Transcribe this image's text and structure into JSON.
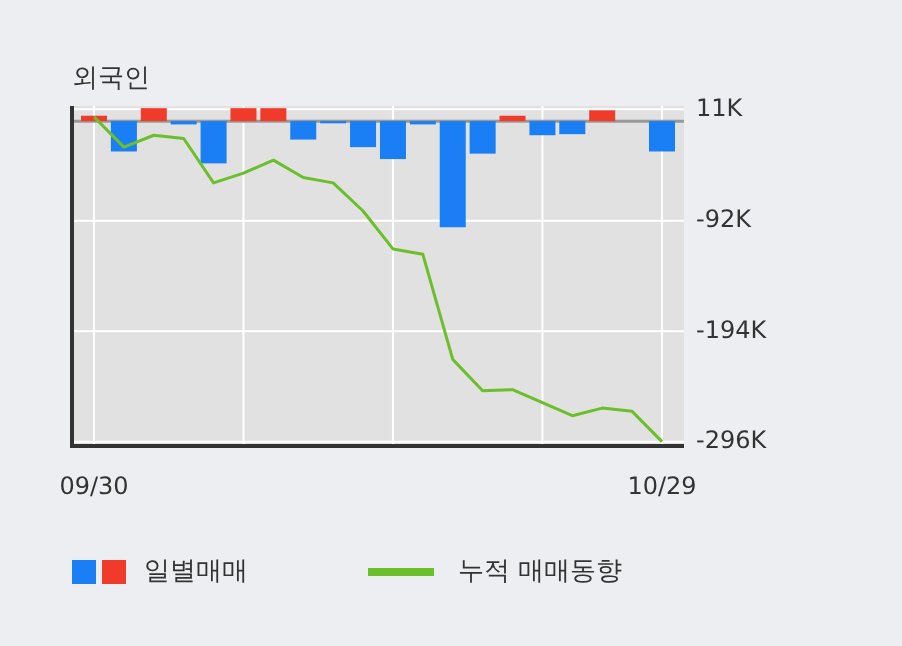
{
  "chart_data": {
    "type": "bar",
    "title": "외국인",
    "categories": [
      "09/30",
      null,
      null,
      null,
      null,
      null,
      null,
      null,
      null,
      null,
      null,
      null,
      null,
      null,
      null,
      null,
      null,
      null,
      null,
      "10/29"
    ],
    "series": [
      {
        "name": "일별매매",
        "colors": [
          "#f03b2a",
          "#1a7ef5",
          "#f03b2a",
          "#1a7ef5",
          "#1a7ef5",
          "#f03b2a",
          "#f03b2a",
          "#1a7ef5",
          "#1a7ef5",
          "#1a7ef5",
          "#1a7ef5",
          "#1a7ef5",
          "#1a7ef5",
          "#1a7ef5",
          "#f03b2a",
          "#1a7ef5",
          "#1a7ef5",
          "#f03b2a",
          "#1a7ef5",
          "#1a7ef5"
        ],
        "values": [
          5,
          -28,
          12,
          -3,
          -39,
          12,
          12,
          -17,
          -2,
          -24,
          -35,
          -3,
          -98,
          -30,
          5,
          -13,
          -12,
          10,
          0,
          -28
        ]
      },
      {
        "type": "line",
        "name": "누적 매매동향",
        "color": "#6abf2a",
        "values": [
          4,
          -24,
          -13,
          -16,
          -57,
          -48,
          -36,
          -52,
          -57,
          -83,
          -118,
          -123,
          -220,
          -249,
          -248,
          -260,
          -272,
          -265,
          -268,
          -296
        ]
      }
    ],
    "ylim": [
      -300,
      14
    ],
    "yticks": [
      {
        "value": 11,
        "label": "11K"
      },
      {
        "value": -92,
        "label": "-92K"
      },
      {
        "value": -194,
        "label": "-194K"
      },
      {
        "value": -296,
        "label": "-296K"
      }
    ],
    "ref_lines": [
      {
        "axis": "y",
        "value": 0,
        "color": "#999999"
      }
    ],
    "grid": true,
    "legend": "bottom"
  }
}
